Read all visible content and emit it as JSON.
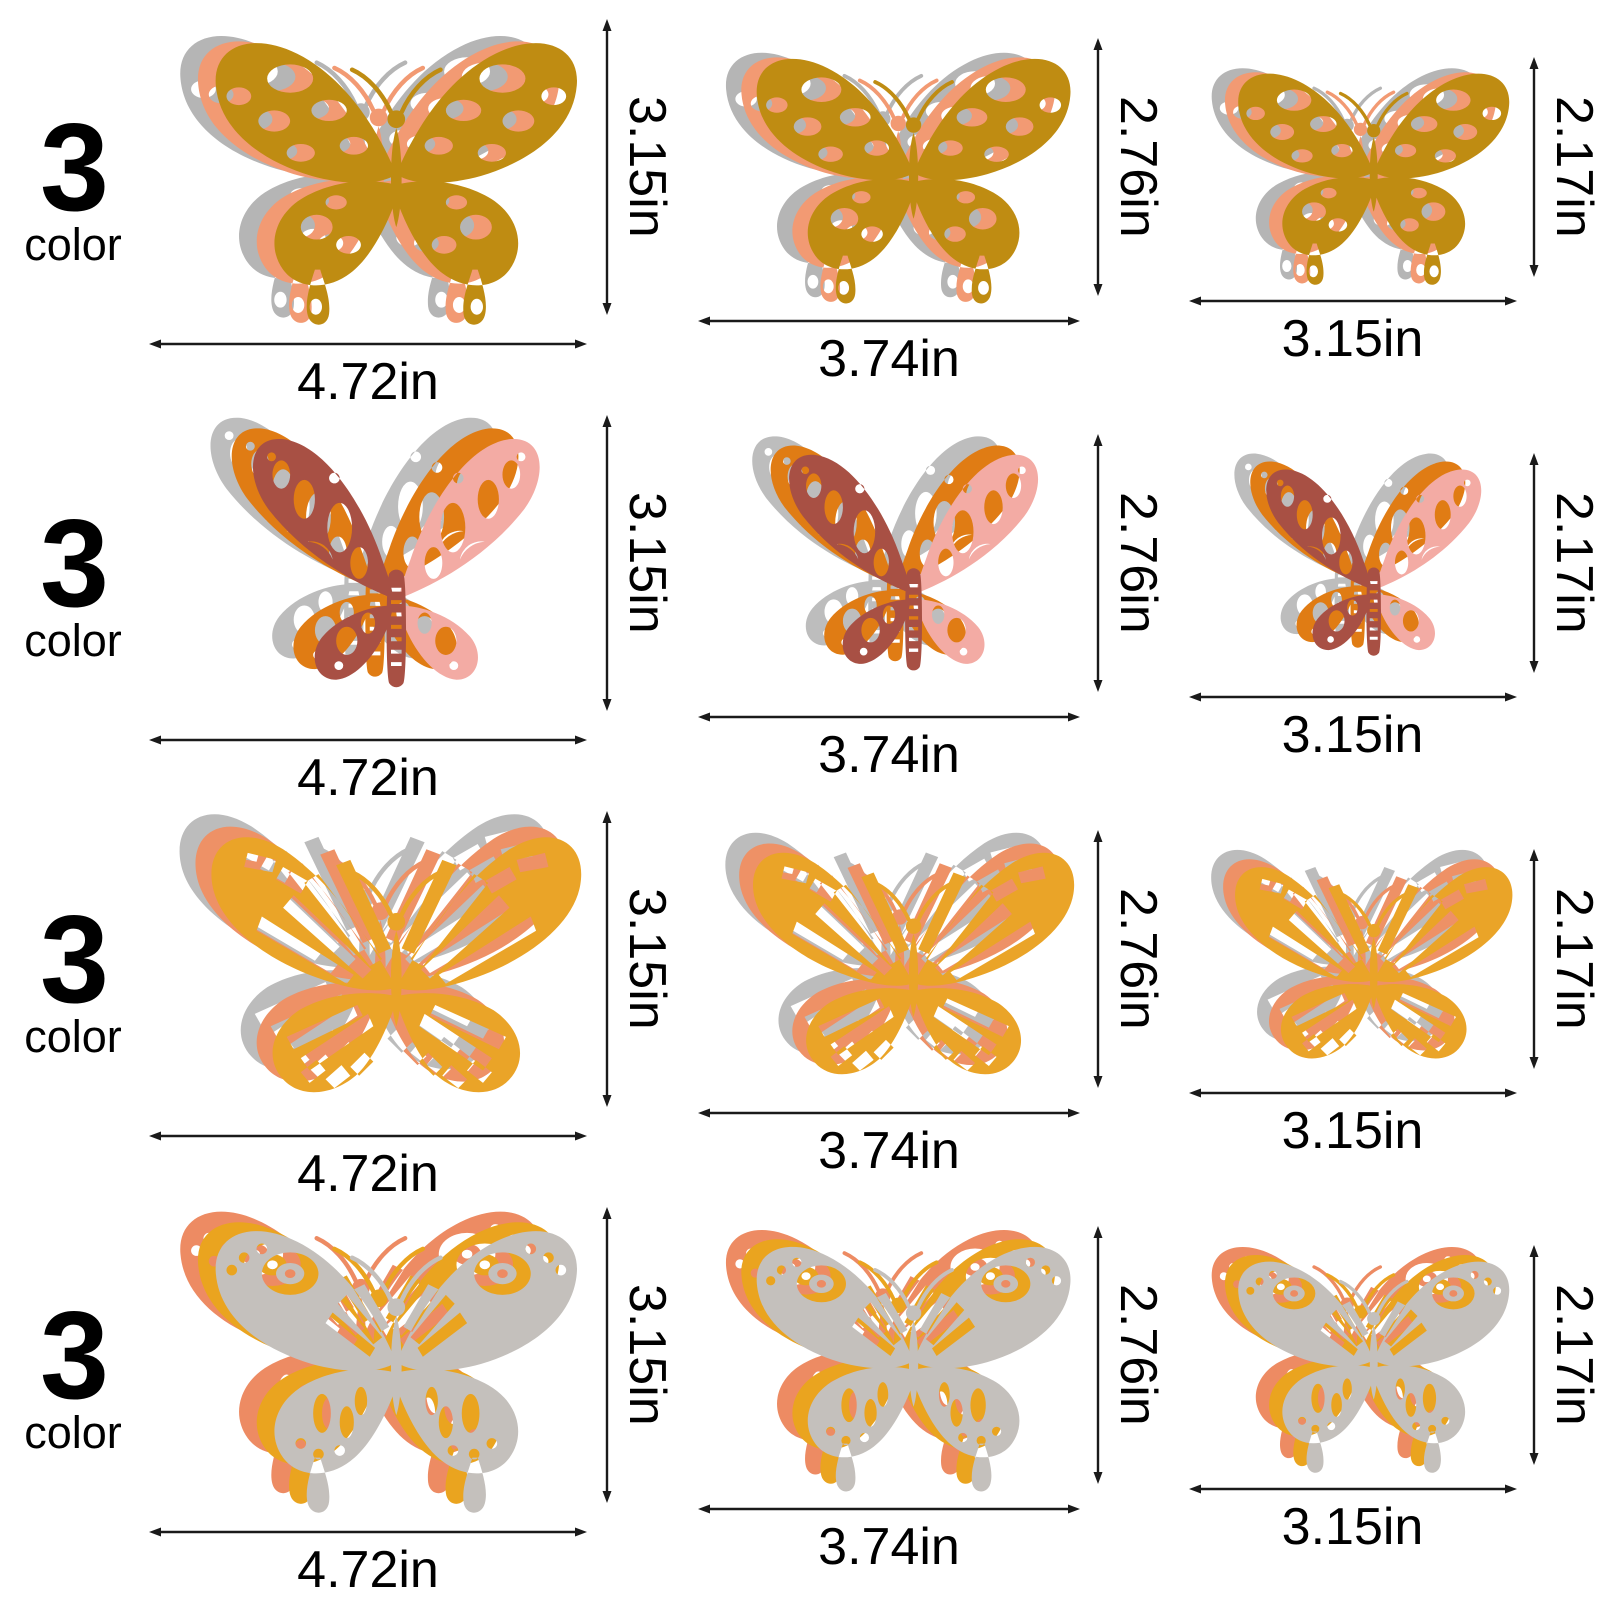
{
  "background": "#ffffff",
  "dimension_line_color": "#1a1a1a",
  "text_color": "#000000",
  "rows": [
    {
      "label_number": "3",
      "label_text": "color",
      "style": "classic",
      "layers": [
        {
          "name": "silver",
          "color": "#b5b5b5"
        },
        {
          "name": "coral",
          "color": "#f29a73"
        },
        {
          "name": "gold",
          "color": "#bf8c12"
        }
      ],
      "sizes": [
        {
          "width_label": "4.72in",
          "height_label": "3.15in"
        },
        {
          "width_label": "3.74in",
          "height_label": "2.76in"
        },
        {
          "width_label": "3.15in",
          "height_label": "2.17in"
        }
      ]
    },
    {
      "label_number": "3",
      "label_text": "color",
      "style": "filigree",
      "layers": [
        {
          "name": "silver",
          "color": "#bdbdbd"
        },
        {
          "name": "orange",
          "color": "#e07c14"
        },
        {
          "name": "maroon-pink-two-tone",
          "color": "#a85044",
          "wing_left": "#a85044",
          "wing_right": "#f3aba4",
          "body": "#a85044"
        }
      ],
      "sizes": [
        {
          "width_label": "4.72in",
          "height_label": "3.15in"
        },
        {
          "width_label": "3.74in",
          "height_label": "2.76in"
        },
        {
          "width_label": "3.15in",
          "height_label": "2.17in"
        }
      ]
    },
    {
      "label_number": "3",
      "label_text": "color",
      "style": "striped",
      "layers": [
        {
          "name": "silver",
          "color": "#bcbcbc"
        },
        {
          "name": "salmon",
          "color": "#ee9166"
        },
        {
          "name": "golden",
          "color": "#eaa428"
        }
      ],
      "sizes": [
        {
          "width_label": "4.72in",
          "height_label": "3.15in"
        },
        {
          "width_label": "3.74in",
          "height_label": "2.76in"
        },
        {
          "width_label": "3.15in",
          "height_label": "2.17in"
        }
      ]
    },
    {
      "label_number": "3",
      "label_text": "color",
      "style": "rose",
      "layers": [
        {
          "name": "coral",
          "color": "#ed8b63"
        },
        {
          "name": "golden",
          "color": "#eaa41f"
        },
        {
          "name": "silver",
          "color": "#c4c0bc"
        }
      ],
      "sizes": [
        {
          "width_label": "4.72in",
          "height_label": "3.15in"
        },
        {
          "width_label": "3.74in",
          "height_label": "2.76in"
        },
        {
          "width_label": "3.15in",
          "height_label": "2.17in"
        }
      ]
    }
  ]
}
